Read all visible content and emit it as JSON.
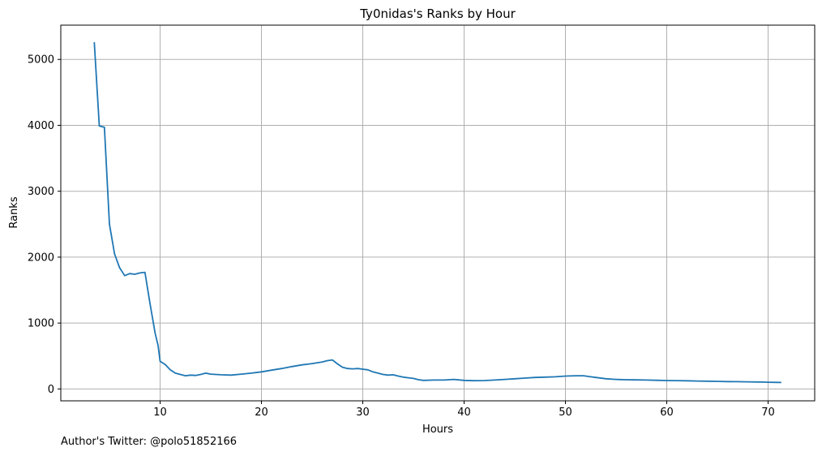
{
  "chart_data": {
    "type": "line",
    "title": "Ty0nidas's Ranks by Hour",
    "xlabel": "Hours",
    "ylabel": "Ranks",
    "xlim": [
      0.2,
      74.6
    ],
    "ylim": [
      -180,
      5520
    ],
    "xticks": [
      10,
      20,
      30,
      40,
      50,
      60,
      70
    ],
    "yticks": [
      0,
      1000,
      2000,
      3000,
      4000,
      5000
    ],
    "grid": true,
    "line_color": "#1f77b4",
    "series": [
      {
        "x": [
          3.5,
          4.0,
          4.5,
          5.0,
          5.5,
          6.0,
          6.5,
          7.0,
          7.5,
          8.0,
          8.5,
          9.0,
          9.5,
          9.8,
          10.0,
          10.5,
          11.0,
          11.5,
          12.0,
          12.5,
          13.0,
          13.5,
          14.0,
          14.5,
          15.0,
          16.0,
          17.0,
          18.0,
          19.0,
          20.0,
          21.0,
          22.0,
          23.0,
          24.0,
          25.0,
          26.0,
          26.5,
          27.0,
          27.5,
          28.0,
          28.5,
          29.0,
          29.5,
          30.0,
          30.5,
          31.0,
          31.5,
          32.0,
          32.5,
          33.0,
          33.5,
          34.0,
          34.5,
          35.0,
          35.5,
          36.0,
          37.0,
          38.0,
          39.0,
          40.0,
          41.0,
          42.0,
          43.0,
          44.0,
          45.0,
          46.0,
          47.0,
          48.0,
          49.0,
          50.0,
          51.0,
          51.8,
          52.5,
          53.0,
          54.0,
          55.0,
          56.0,
          57.0,
          58.0,
          59.0,
          60.0,
          61.0,
          62.0,
          63.0,
          64.0,
          65.0,
          66.0,
          67.0,
          68.0,
          69.0,
          69.5,
          70.0,
          71.0,
          71.3
        ],
        "y": [
          5260,
          3990,
          3970,
          2500,
          2050,
          1840,
          1720,
          1750,
          1740,
          1760,
          1770,
          1300,
          850,
          660,
          420,
          370,
          290,
          240,
          220,
          200,
          210,
          205,
          220,
          240,
          225,
          215,
          210,
          225,
          240,
          260,
          285,
          310,
          340,
          365,
          385,
          410,
          430,
          440,
          380,
          330,
          310,
          305,
          310,
          300,
          290,
          260,
          240,
          220,
          210,
          215,
          195,
          180,
          170,
          160,
          140,
          130,
          135,
          135,
          145,
          130,
          125,
          128,
          135,
          145,
          155,
          165,
          175,
          180,
          185,
          195,
          200,
          200,
          185,
          175,
          155,
          145,
          140,
          138,
          135,
          132,
          128,
          126,
          124,
          120,
          118,
          115,
          112,
          110,
          108,
          106,
          105,
          102,
          100,
          98
        ]
      }
    ]
  },
  "footer": {
    "text": "Author's Twitter: @polo51852166"
  }
}
